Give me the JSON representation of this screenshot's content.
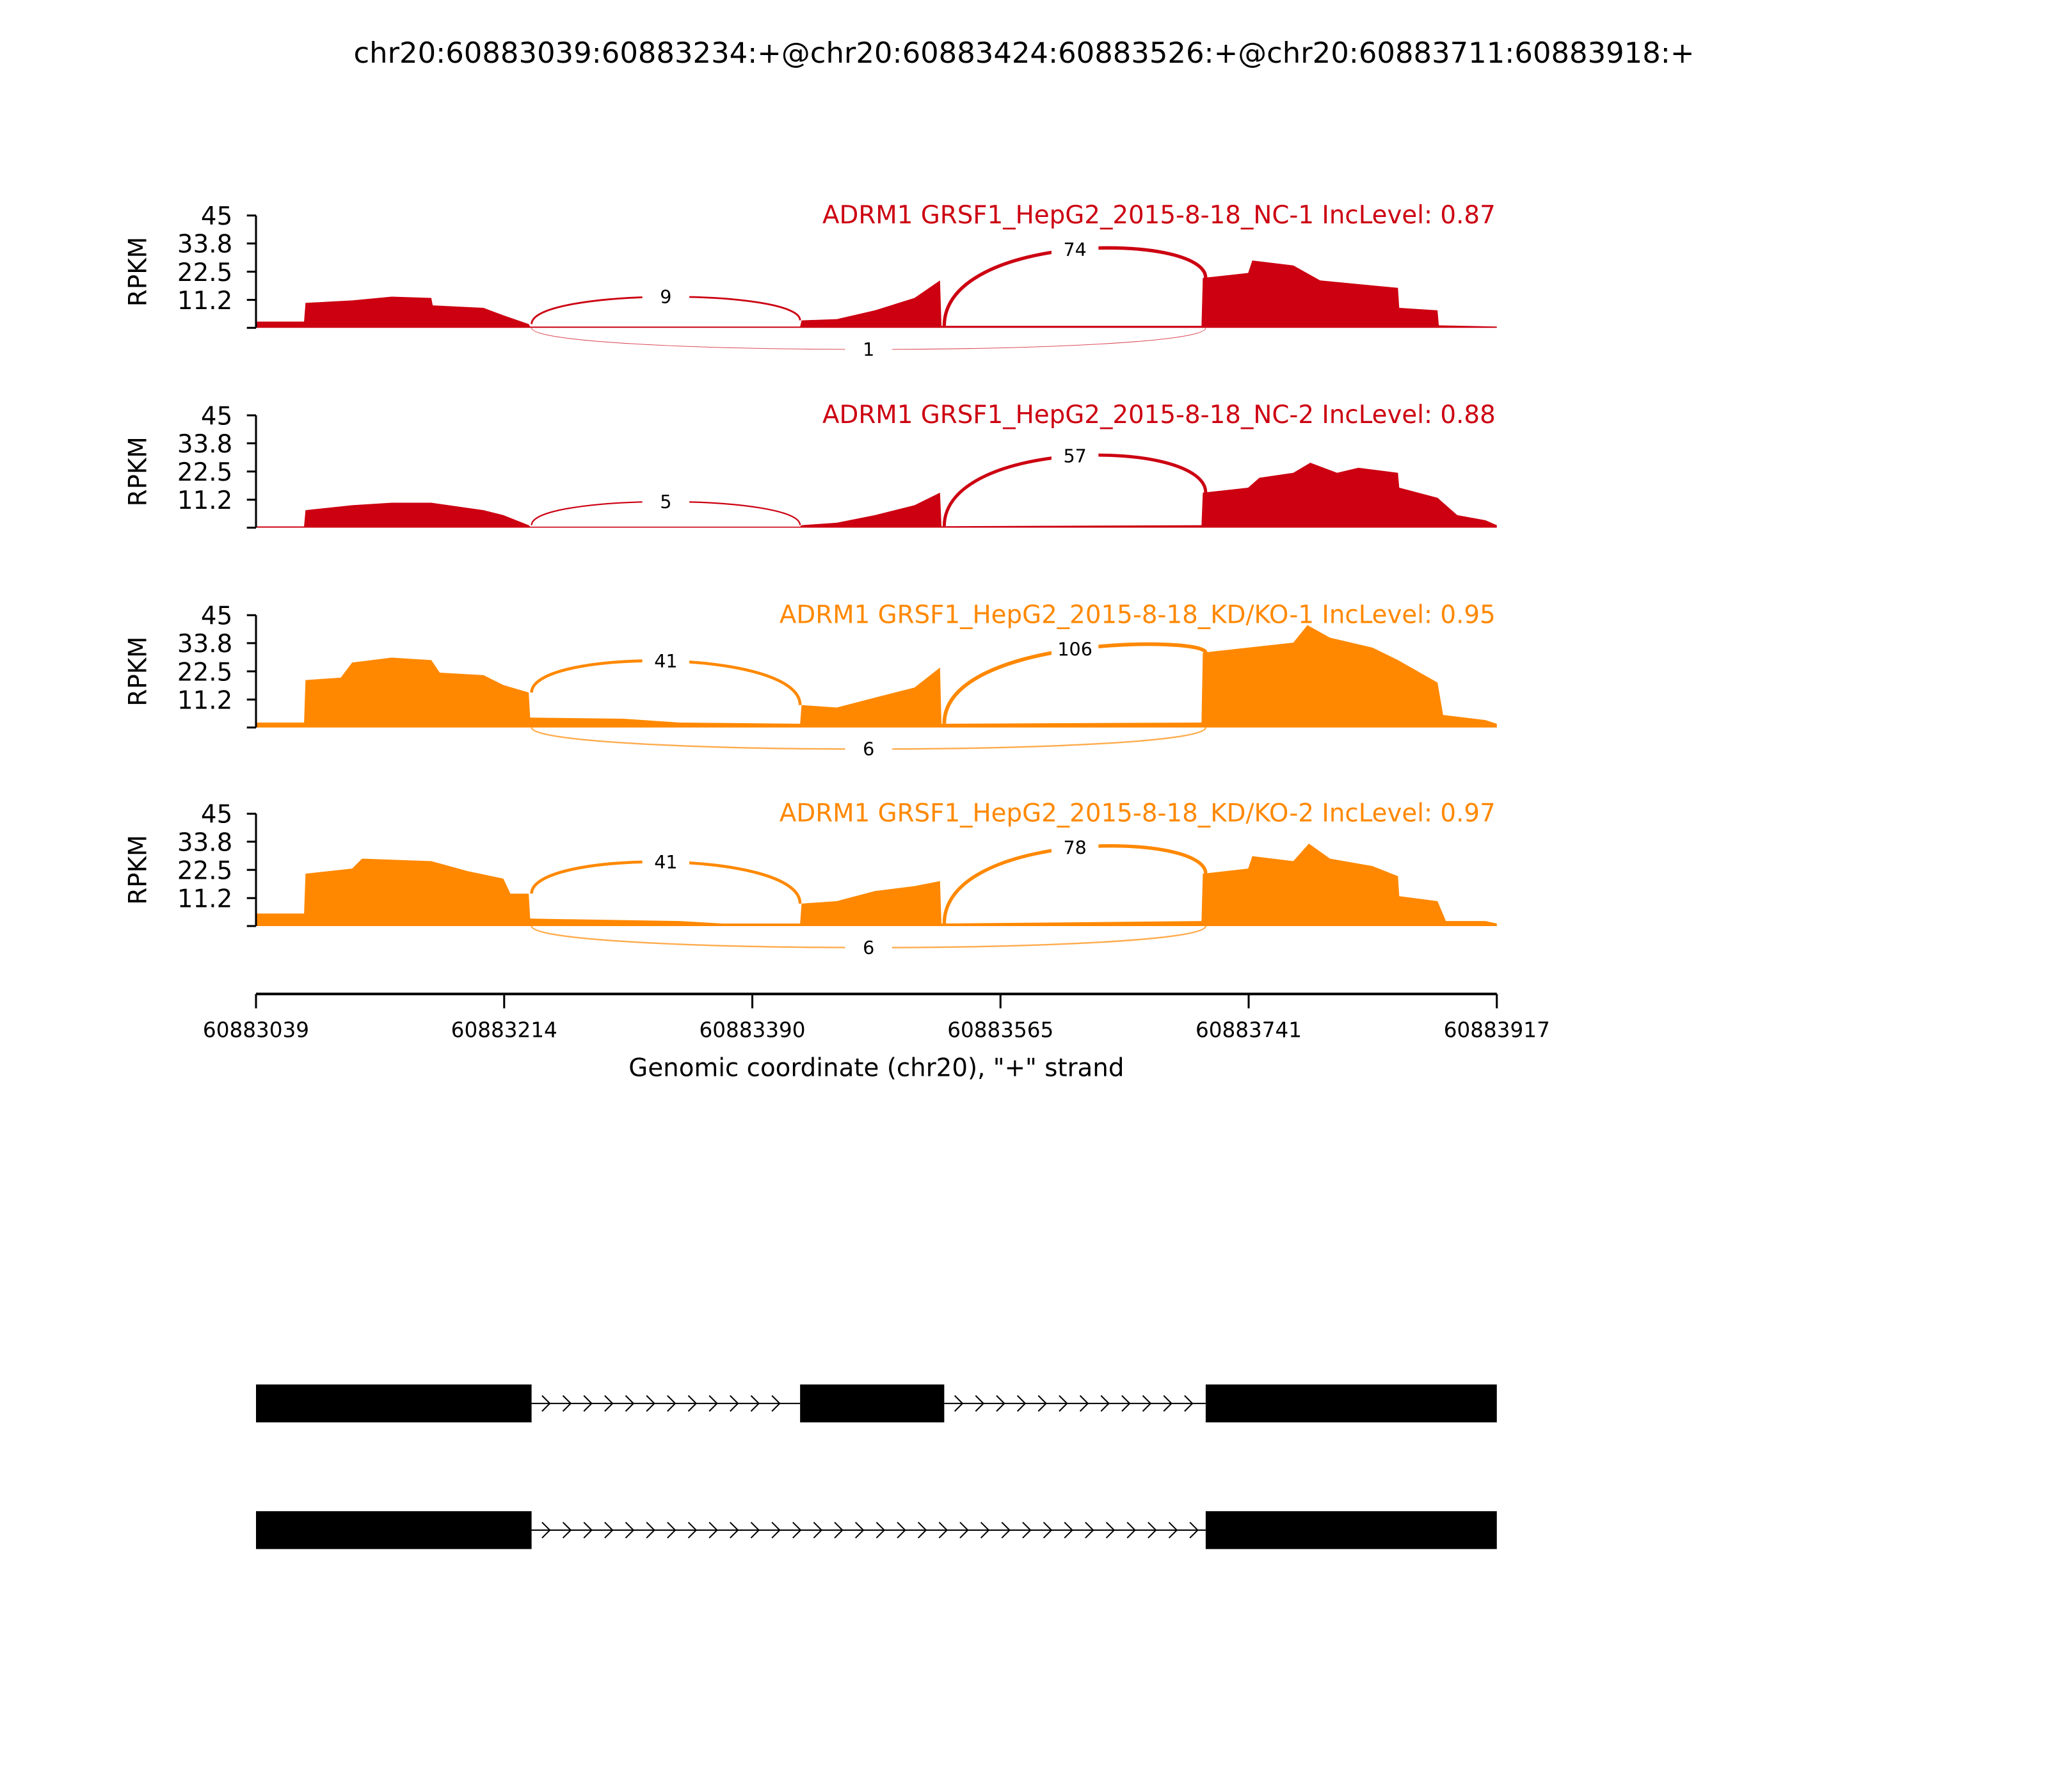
{
  "chart_data": {
    "type": "area",
    "title": "chr20:60883039:60883234:+@chr20:60883424:60883526:+@chr20:60883711:60883918:+",
    "xlabel": "Genomic coordinate (chr20), \"+\" strand",
    "ylabel": "RPKM",
    "xlim": [
      60883039,
      60883917
    ],
    "ylim": [
      0,
      45
    ],
    "x_ticks": [
      "60883039",
      "60883214",
      "60883390",
      "60883565",
      "60883741",
      "60883917"
    ],
    "y_ticks": [
      "45",
      "33.8",
      "22.5",
      "11.2"
    ],
    "exons": [
      [
        60883039,
        60883234
      ],
      [
        60883424,
        60883526
      ],
      [
        60883711,
        60883918
      ]
    ],
    "transcripts": [
      {
        "exons": [
          [
            60883039,
            60883234
          ],
          [
            60883424,
            60883526
          ],
          [
            60883711,
            60883918
          ]
        ]
      },
      {
        "exons": [
          [
            60883039,
            60883234
          ],
          [
            60883711,
            60883918
          ]
        ]
      }
    ],
    "series": [
      {
        "name": "ADRM1 GRSF1_HepG2_2015-8-18_NC-1 IncLevel: 0.87",
        "color": "#cc0011",
        "coverage_offsets_bp_rpkm": [
          [
            0,
            2.5
          ],
          [
            34,
            2.5
          ],
          [
            35,
            10
          ],
          [
            68,
            11
          ],
          [
            96,
            12.5
          ],
          [
            124,
            12
          ],
          [
            125,
            9
          ],
          [
            161,
            8
          ],
          [
            175,
            5
          ],
          [
            193,
            1.5
          ],
          [
            194,
            0.5
          ],
          [
            385,
            0.5
          ],
          [
            386,
            3
          ],
          [
            411,
            3.5
          ],
          [
            438,
            7
          ],
          [
            466,
            12
          ],
          [
            484,
            19
          ],
          [
            485,
            0.8
          ],
          [
            669,
            0.8
          ],
          [
            670,
            20
          ],
          [
            702,
            22
          ],
          [
            705,
            27
          ],
          [
            734,
            25
          ],
          [
            753,
            19
          ],
          [
            808,
            16
          ],
          [
            809,
            8
          ],
          [
            836,
            7
          ],
          [
            837,
            1
          ],
          [
            878,
            0.5
          ]
        ],
        "junctions": [
          {
            "from": 60883234,
            "to": 60883424,
            "count": "9",
            "side": "above"
          },
          {
            "from": 60883526,
            "to": 60883711,
            "count": "74",
            "side": "above"
          },
          {
            "from": 60883234,
            "to": 60883711,
            "count": "1",
            "side": "below"
          }
        ]
      },
      {
        "name": "ADRM1 GRSF1_HepG2_2015-8-18_NC-2 IncLevel: 0.88",
        "color": "#cc0011",
        "coverage_offsets_bp_rpkm": [
          [
            0,
            0.5
          ],
          [
            34,
            0.5
          ],
          [
            35,
            7
          ],
          [
            68,
            9
          ],
          [
            96,
            10
          ],
          [
            124,
            10
          ],
          [
            161,
            7
          ],
          [
            175,
            5
          ],
          [
            193,
            1
          ],
          [
            194,
            0.4
          ],
          [
            385,
            0.4
          ],
          [
            386,
            1
          ],
          [
            411,
            2
          ],
          [
            438,
            5
          ],
          [
            466,
            9
          ],
          [
            484,
            14
          ],
          [
            485,
            0.6
          ],
          [
            669,
            1
          ],
          [
            670,
            14
          ],
          [
            702,
            16
          ],
          [
            710,
            20
          ],
          [
            734,
            22
          ],
          [
            746,
            26
          ],
          [
            765,
            22
          ],
          [
            780,
            24
          ],
          [
            808,
            22
          ],
          [
            809,
            16
          ],
          [
            836,
            12
          ],
          [
            850,
            5
          ],
          [
            870,
            3
          ],
          [
            878,
            1
          ]
        ],
        "junctions": [
          {
            "from": 60883234,
            "to": 60883424,
            "count": "5",
            "side": "above"
          },
          {
            "from": 60883526,
            "to": 60883711,
            "count": "57",
            "side": "above"
          }
        ]
      },
      {
        "name": "ADRM1 GRSF1_HepG2_2015-8-18_KD/KO-1 IncLevel: 0.95",
        "color": "#ff8800",
        "coverage_offsets_bp_rpkm": [
          [
            0,
            2
          ],
          [
            34,
            2
          ],
          [
            35,
            19
          ],
          [
            60,
            20
          ],
          [
            68,
            26
          ],
          [
            96,
            28
          ],
          [
            124,
            27
          ],
          [
            130,
            22
          ],
          [
            161,
            21
          ],
          [
            175,
            17
          ],
          [
            193,
            14
          ],
          [
            194,
            4
          ],
          [
            260,
            3.5
          ],
          [
            300,
            2
          ],
          [
            385,
            1.5
          ],
          [
            386,
            9
          ],
          [
            411,
            8
          ],
          [
            438,
            12
          ],
          [
            466,
            16
          ],
          [
            484,
            24
          ],
          [
            485,
            1.5
          ],
          [
            669,
            2
          ],
          [
            670,
            30
          ],
          [
            702,
            32
          ],
          [
            734,
            34
          ],
          [
            744,
            41
          ],
          [
            760,
            36
          ],
          [
            790,
            32
          ],
          [
            808,
            27
          ],
          [
            836,
            18
          ],
          [
            840,
            5
          ],
          [
            870,
            3
          ],
          [
            878,
            1.5
          ]
        ],
        "junctions": [
          {
            "from": 60883234,
            "to": 60883424,
            "count": "41",
            "side": "above"
          },
          {
            "from": 60883526,
            "to": 60883711,
            "count": "106",
            "side": "above"
          },
          {
            "from": 60883234,
            "to": 60883711,
            "count": "6",
            "side": "below"
          }
        ]
      },
      {
        "name": "ADRM1 GRSF1_HepG2_2015-8-18_KD/KO-2 IncLevel: 0.97",
        "color": "#ff8800",
        "coverage_offsets_bp_rpkm": [
          [
            0,
            5
          ],
          [
            34,
            5
          ],
          [
            35,
            21
          ],
          [
            68,
            23
          ],
          [
            75,
            27
          ],
          [
            124,
            26
          ],
          [
            150,
            22
          ],
          [
            175,
            19
          ],
          [
            180,
            13
          ],
          [
            193,
            13
          ],
          [
            194,
            3
          ],
          [
            300,
            2
          ],
          [
            330,
            1
          ],
          [
            385,
            1
          ],
          [
            386,
            9
          ],
          [
            411,
            10
          ],
          [
            438,
            14
          ],
          [
            466,
            16
          ],
          [
            484,
            18
          ],
          [
            485,
            1
          ],
          [
            669,
            2
          ],
          [
            670,
            21
          ],
          [
            702,
            23
          ],
          [
            705,
            28
          ],
          [
            734,
            26
          ],
          [
            745,
            33
          ],
          [
            760,
            27
          ],
          [
            790,
            24
          ],
          [
            808,
            20
          ],
          [
            809,
            12
          ],
          [
            836,
            10
          ],
          [
            842,
            2
          ],
          [
            870,
            2
          ],
          [
            878,
            1
          ]
        ],
        "junctions": [
          {
            "from": 60883234,
            "to": 60883424,
            "count": "41",
            "side": "above"
          },
          {
            "from": 60883526,
            "to": 60883711,
            "count": "78",
            "side": "above"
          },
          {
            "from": 60883234,
            "to": 60883711,
            "count": "6",
            "side": "below"
          }
        ]
      }
    ]
  }
}
